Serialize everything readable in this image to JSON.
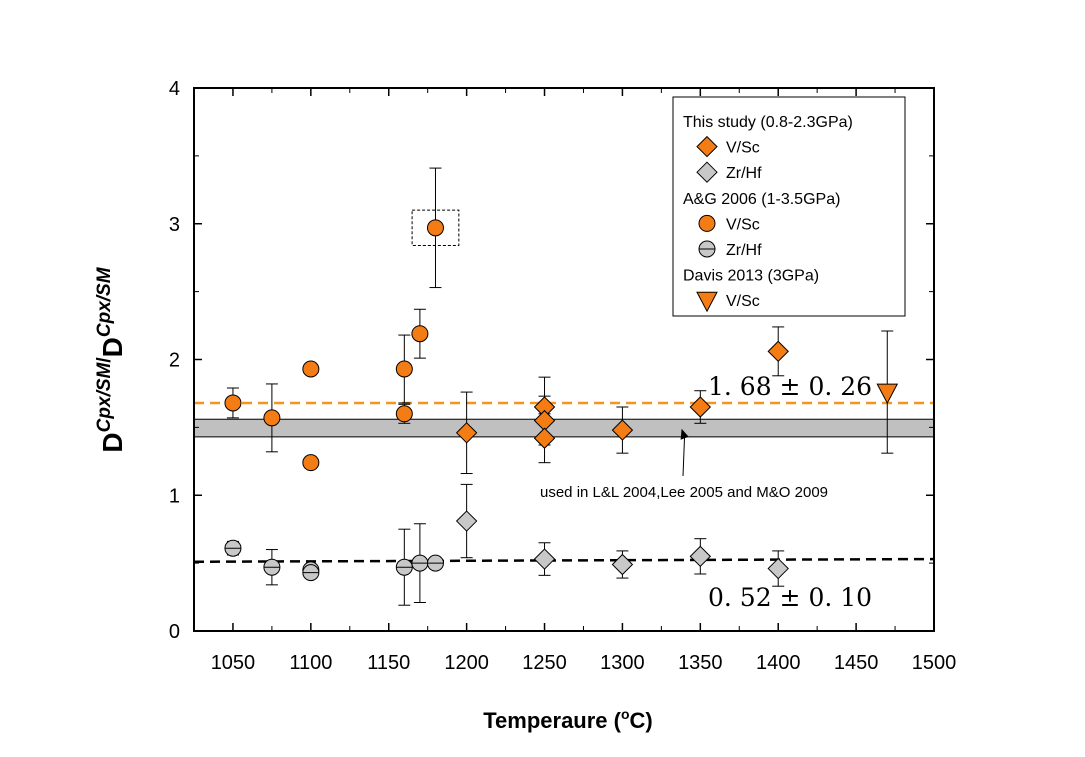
{
  "chart_data": {
    "type": "scatter",
    "xlabel": {
      "main": "Temperaure (",
      "sup": "o",
      "tail": "C)"
    },
    "ylabel": {
      "base1": "D",
      "sup1": "Cpx/SM",
      "slash": "/",
      "base2": "D",
      "sup2": "Cpx/SM"
    },
    "xlim": [
      1025,
      1500
    ],
    "ylim": [
      0,
      4
    ],
    "x_ticks": [
      1050,
      1100,
      1150,
      1200,
      1250,
      1300,
      1350,
      1400,
      1450,
      1500
    ],
    "y_ticks": [
      0,
      1,
      2,
      3,
      4
    ],
    "grid": false,
    "legend_position": "top-right",
    "legend": [
      {
        "type": "header",
        "text": "This study (0.8-2.3GPa)"
      },
      {
        "type": "entry",
        "marker": "diamond",
        "color": "#F47C14",
        "text": "V/Sc"
      },
      {
        "type": "entry",
        "marker": "diamond",
        "color": "#C8C8C8",
        "text": "Zr/Hf"
      },
      {
        "type": "header",
        "text": "A&G 2006 (1-3.5GPa)"
      },
      {
        "type": "entry",
        "marker": "circle",
        "color": "#F47C14",
        "text": "V/Sc"
      },
      {
        "type": "entry",
        "marker": "circle",
        "color": "#C8C8C8",
        "text": "Zr/Hf"
      },
      {
        "type": "header",
        "text": "Davis 2013 (3GPa)"
      },
      {
        "type": "entry",
        "marker": "triangle-down",
        "color": "#F47C14",
        "text": "V/Sc"
      }
    ],
    "series": [
      {
        "group": "This study (0.8-2.3GPa)",
        "name": "V/Sc",
        "marker": "diamond",
        "color": "#F47C14",
        "points": [
          {
            "x": 1200,
            "y": 1.46,
            "err": 0.3
          },
          {
            "x": 1250,
            "y": 1.65,
            "err": 0.22
          },
          {
            "x": 1250,
            "y": 1.55,
            "err": 0.18
          },
          {
            "x": 1250,
            "y": 1.42,
            "err": 0.18
          },
          {
            "x": 1300,
            "y": 1.48,
            "err": 0.17
          },
          {
            "x": 1350,
            "y": 1.65,
            "err": 0.12
          },
          {
            "x": 1400,
            "y": 2.06,
            "err": 0.18
          }
        ]
      },
      {
        "group": "This study (0.8-2.3GPa)",
        "name": "Zr/Hf",
        "marker": "diamond",
        "color": "#C8C8C8",
        "points": [
          {
            "x": 1200,
            "y": 0.81,
            "err": 0.27
          },
          {
            "x": 1250,
            "y": 0.53,
            "err": 0.12
          },
          {
            "x": 1300,
            "y": 0.49,
            "err": 0.1
          },
          {
            "x": 1350,
            "y": 0.55,
            "err": 0.13
          },
          {
            "x": 1400,
            "y": 0.46,
            "err": 0.13
          }
        ]
      },
      {
        "group": "A&G 2006 (1-3.5GPa)",
        "name": "V/Sc",
        "marker": "circle",
        "color": "#F47C14",
        "points": [
          {
            "x": 1050,
            "y": 1.68,
            "err": 0.11
          },
          {
            "x": 1075,
            "y": 1.57,
            "err": 0.25
          },
          {
            "x": 1100,
            "y": 1.93,
            "err": 0.04
          },
          {
            "x": 1100,
            "y": 1.24,
            "err": 0.04
          },
          {
            "x": 1160,
            "y": 1.93,
            "err": 0.25
          },
          {
            "x": 1160,
            "y": 1.6,
            "err": 0.07
          },
          {
            "x": 1170,
            "y": 2.19,
            "err": 0.18
          },
          {
            "x": 1180,
            "y": 2.97,
            "err": 0.44
          }
        ]
      },
      {
        "group": "A&G 2006 (1-3.5GPa)",
        "name": "Zr/Hf",
        "marker": "circle",
        "color": "#C8C8C8",
        "points": [
          {
            "x": 1050,
            "y": 0.61,
            "err": 0.05
          },
          {
            "x": 1075,
            "y": 0.47,
            "err": 0.13
          },
          {
            "x": 1100,
            "y": 0.45,
            "err": 0.04
          },
          {
            "x": 1100,
            "y": 0.43,
            "err": 0.04
          },
          {
            "x": 1160,
            "y": 0.47,
            "err": 0.28
          },
          {
            "x": 1170,
            "y": 0.5,
            "err": 0.29
          },
          {
            "x": 1180,
            "y": 0.5,
            "err": 0.02
          }
        ]
      },
      {
        "group": "Davis 2013 (3GPa)",
        "name": "V/Sc",
        "marker": "triangle-down",
        "color": "#F47C14",
        "points": [
          {
            "x": 1470,
            "y": 1.76,
            "err": 0.45
          }
        ]
      }
    ],
    "reference_lines": [
      {
        "kind": "dashed",
        "color": "#F7941D",
        "y": 1.68,
        "label": "1. 68 ± 0. 26"
      },
      {
        "kind": "dashed",
        "color": "#000000",
        "y_start": 0.51,
        "y_end": 0.53,
        "label": "0. 52 ± 0. 10"
      }
    ],
    "band": {
      "y_min": 1.43,
      "y_max": 1.56,
      "color": "#C0C0C0"
    },
    "annotations": [
      {
        "text": "used in L&L 2004,Lee 2005 and M&O 2009",
        "arrow_to": {
          "x": 1338,
          "y": 1.49
        }
      },
      {
        "kind": "dashed-box",
        "x_min": 1165,
        "x_max": 1195,
        "y_min": 2.84,
        "y_max": 3.1
      }
    ]
  }
}
